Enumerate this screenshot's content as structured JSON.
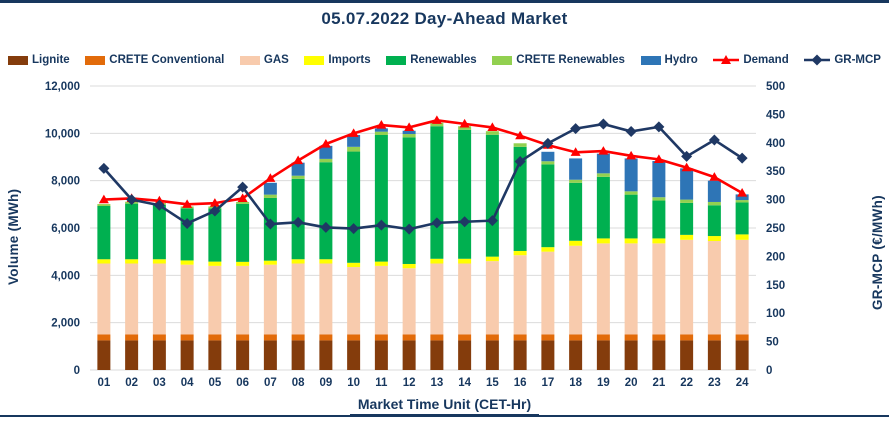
{
  "title": "05.07.2022  Day-Ahead Market",
  "text_color": "#17375E",
  "grid_color": "#DBDBDB",
  "legend": [
    {
      "key": "lignite",
      "label": "Lignite",
      "type": "box",
      "color": "#843C0C"
    },
    {
      "key": "crete-conventional",
      "label": "CRETE Conventional",
      "type": "box",
      "color": "#E26B0A"
    },
    {
      "key": "gas",
      "label": "GAS",
      "type": "box",
      "color": "#F8CBAD"
    },
    {
      "key": "imports",
      "label": "Imports",
      "type": "box",
      "color": "#FFFF00"
    },
    {
      "key": "renewables",
      "label": "Renewables",
      "type": "box",
      "color": "#00B050"
    },
    {
      "key": "crete-renewables",
      "label": "CRETE Renewables",
      "type": "box",
      "color": "#92D050"
    },
    {
      "key": "hydro",
      "label": "Hydro",
      "type": "box",
      "color": "#2E75B6"
    },
    {
      "key": "demand",
      "label": "Demand",
      "type": "line-triangle",
      "color": "#FF0000"
    },
    {
      "key": "gr-mcp",
      "label": "GR-MCP",
      "type": "line-diamond",
      "color": "#1F3864"
    }
  ],
  "chart_data": {
    "type": "combo-stacked-bar-with-lines",
    "categories": [
      "01",
      "02",
      "03",
      "04",
      "05",
      "06",
      "07",
      "08",
      "09",
      "10",
      "11",
      "12",
      "13",
      "14",
      "15",
      "16",
      "17",
      "18",
      "19",
      "20",
      "21",
      "22",
      "23",
      "24"
    ],
    "bar_series": [
      {
        "name": "Lignite",
        "color": "#843C0C",
        "values": [
          1250,
          1250,
          1250,
          1250,
          1250,
          1250,
          1250,
          1250,
          1250,
          1250,
          1250,
          1250,
          1250,
          1250,
          1250,
          1250,
          1250,
          1250,
          1250,
          1250,
          1250,
          1250,
          1250,
          1250
        ]
      },
      {
        "name": "CRETE Conventional",
        "color": "#E26B0A",
        "values": [
          250,
          250,
          250,
          250,
          250,
          250,
          250,
          250,
          250,
          250,
          250,
          250,
          250,
          250,
          250,
          250,
          250,
          250,
          250,
          250,
          250,
          250,
          250,
          250
        ]
      },
      {
        "name": "GAS",
        "color": "#F8CBAD",
        "values": [
          3000,
          3000,
          3000,
          2950,
          2900,
          2900,
          2950,
          3000,
          3000,
          2850,
          2900,
          2800,
          3000,
          3000,
          3100,
          3350,
          3500,
          3750,
          3850,
          3850,
          3850,
          4000,
          3950,
          4000
        ]
      },
      {
        "name": "Imports",
        "color": "#FFFF00",
        "values": [
          180,
          180,
          180,
          180,
          180,
          170,
          170,
          180,
          180,
          180,
          180,
          180,
          200,
          200,
          190,
          180,
          190,
          210,
          210,
          210,
          210,
          210,
          210,
          230
        ]
      },
      {
        "name": "Renewables",
        "color": "#00B050",
        "values": [
          2250,
          2350,
          2300,
          2200,
          2250,
          2450,
          2650,
          3400,
          4100,
          4700,
          5350,
          5350,
          5600,
          5450,
          5150,
          4400,
          3500,
          2450,
          2600,
          1850,
          1600,
          1350,
          1300,
          1350
        ]
      },
      {
        "name": "CRETE Renewables",
        "color": "#92D050",
        "values": [
          80,
          80,
          80,
          80,
          80,
          80,
          140,
          130,
          140,
          200,
          140,
          140,
          150,
          150,
          150,
          150,
          130,
          130,
          150,
          140,
          140,
          140,
          140,
          100
        ]
      },
      {
        "name": "Hydro",
        "color": "#2E75B6",
        "values": [
          0,
          0,
          0,
          0,
          0,
          0,
          500,
          550,
          550,
          500,
          140,
          140,
          0,
          0,
          0,
          0,
          400,
          900,
          830,
          1390,
          1530,
          1320,
          900,
          240
        ]
      }
    ],
    "line_series": [
      {
        "name": "Demand",
        "axis": "left",
        "color": "#FF0000",
        "marker": "triangle",
        "values": [
          7200,
          7250,
          7150,
          7000,
          7050,
          7250,
          8100,
          8850,
          9550,
          10000,
          10350,
          10250,
          10550,
          10400,
          10250,
          9900,
          9500,
          9200,
          9250,
          9050,
          8900,
          8550,
          8150,
          7480
        ]
      },
      {
        "name": "GR-MCP",
        "axis": "right",
        "color": "#1F3864",
        "marker": "diamond",
        "values": [
          355,
          300,
          290,
          258,
          280,
          322,
          257,
          260,
          251,
          249,
          255,
          248,
          259,
          261,
          263,
          367,
          399,
          425,
          433,
          420,
          428,
          376,
          405,
          373
        ]
      }
    ],
    "left_axis": {
      "label": "Volume (MWh)",
      "min": 0,
      "max": 12000,
      "step": 2000,
      "ticks": [
        "0",
        "2,000",
        "4,000",
        "6,000",
        "8,000",
        "10,000",
        "12,000"
      ]
    },
    "right_axis": {
      "label": "GR-MCP (€/MWh)",
      "min": 0,
      "max": 500,
      "step": 50,
      "ticks": [
        "0",
        "50",
        "100",
        "150",
        "200",
        "250",
        "300",
        "350",
        "400",
        "450",
        "500"
      ]
    },
    "xlabel": "Market Time Unit (CET-Hr)",
    "grid": "horizontal-only",
    "legend_position": "top"
  }
}
